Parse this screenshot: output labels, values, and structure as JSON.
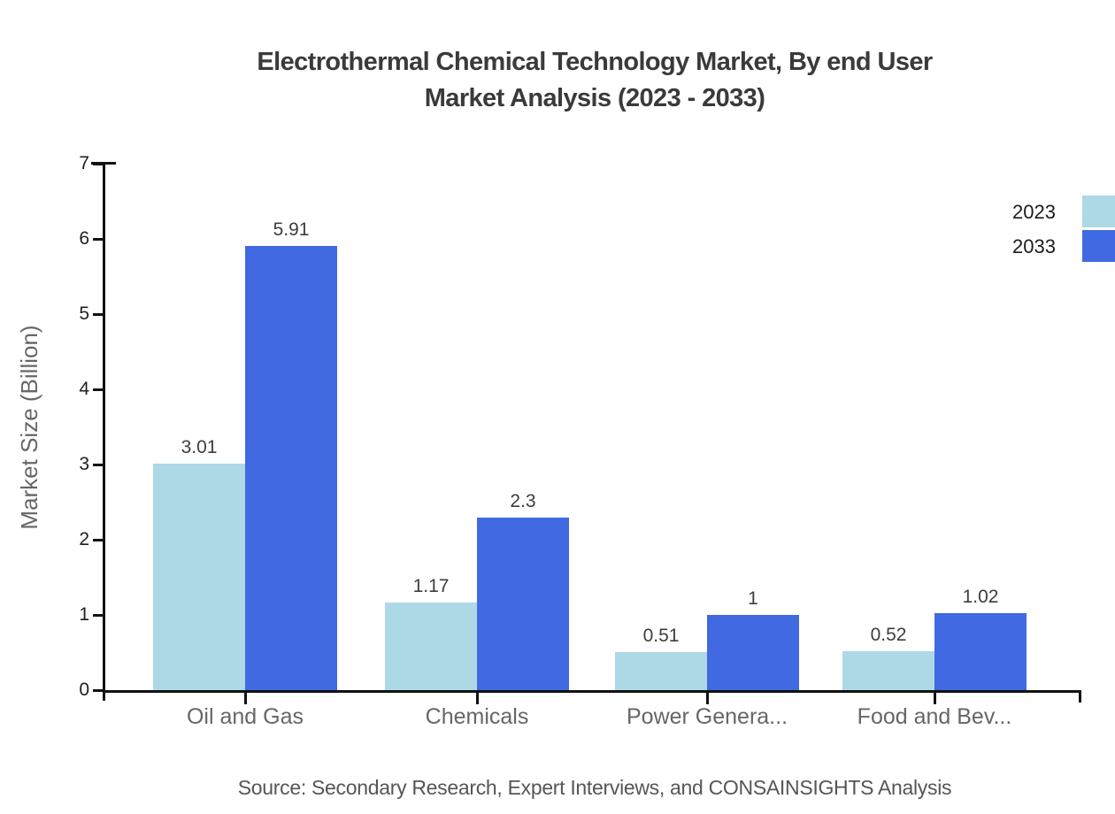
{
  "title": {
    "line1": "Electrothermal Chemical Technology Market, By end User",
    "line2": "Market Analysis (2023 - 2033)"
  },
  "source": "Source: Secondary Research, Expert Interviews, and CONSAINSIGHTS Analysis",
  "y_axis": {
    "label": "Market Size (Billion)",
    "ticks": [
      "0",
      "1",
      "2",
      "3",
      "4",
      "5",
      "6",
      "7"
    ],
    "min": 0,
    "max": 7
  },
  "legend": [
    {
      "label": "2023",
      "color": "#ADD8E6"
    },
    {
      "label": "2033",
      "color": "#4169E1"
    }
  ],
  "chart_data": {
    "type": "bar",
    "title": "Electrothermal Chemical Technology Market, By end User Market Analysis (2023 - 2033)",
    "categories": [
      "Oil and Gas",
      "Chemicals",
      "Power Genera...",
      "Food and Bev..."
    ],
    "series": [
      {
        "name": "2023",
        "color": "#ADD8E6",
        "values": [
          3.01,
          1.17,
          0.51,
          0.52
        ],
        "labels": [
          "3.01",
          "1.17",
          "0.51",
          "0.52"
        ]
      },
      {
        "name": "2033",
        "color": "#4169E1",
        "values": [
          5.91,
          2.3,
          1.0,
          1.02
        ],
        "labels": [
          "5.91",
          "2.3",
          "1",
          "1.02"
        ]
      }
    ],
    "xlabel": "",
    "ylabel": "Market Size (Billion)",
    "ylim": [
      0,
      7
    ],
    "grid": false,
    "legend_position": "top-right"
  }
}
